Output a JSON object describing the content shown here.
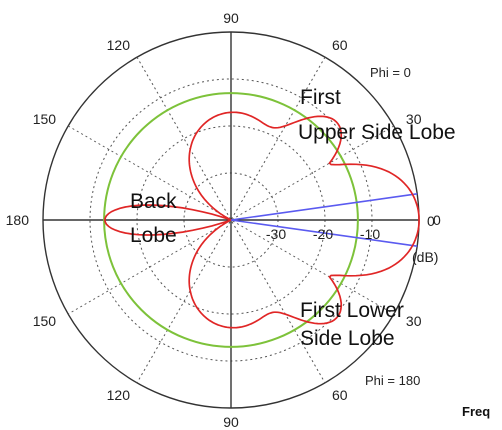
{
  "chart_data": {
    "type": "polar-line",
    "title": "",
    "radial_unit": "(dB)",
    "radial_range_db": [
      -40,
      0
    ],
    "radial_ticks": [
      {
        "label": "-30",
        "value": -30
      },
      {
        "label": "-20",
        "value": -20
      },
      {
        "label": "-10",
        "value": -10
      },
      {
        "label": "0",
        "value": 0
      }
    ],
    "angle_tick_labels": [
      {
        "label": "90",
        "angle_deg": 90
      },
      {
        "label": "60",
        "angle_deg": 60
      },
      {
        "label": "30",
        "angle_deg": 30
      },
      {
        "label": "0",
        "angle_deg": 0
      },
      {
        "label": "30",
        "angle_deg": -30
      },
      {
        "label": "60",
        "angle_deg": -60
      },
      {
        "label": "90",
        "angle_deg": -90
      },
      {
        "label": "120",
        "angle_deg": -120
      },
      {
        "label": "150",
        "angle_deg": -150
      },
      {
        "label": "180",
        "angle_deg": 180
      },
      {
        "label": "150",
        "angle_deg": 150
      },
      {
        "label": "120",
        "angle_deg": 120
      }
    ],
    "plane_labels": {
      "upper": "Phi = 0",
      "lower": "Phi = 180"
    },
    "annotations": {
      "upper_lobe": [
        "First",
        "Upper Side Lobe"
      ],
      "lower_lobe": [
        "First Lower",
        "Side Lobe"
      ],
      "back_lobe": [
        "Back",
        "Lobe"
      ]
    },
    "reference_circle_db": -13,
    "beamwidth_lines_deg": [
      8,
      -8
    ],
    "pattern": {
      "main_lobe_peak_db": 0,
      "main_lobe_half_width_deg": 20,
      "side_lobe_peak_db": -18,
      "side_lobe_angle_deg": 40,
      "back_lobe_peak_db": -28
    },
    "colors": {
      "pattern": "#e02626",
      "reference_circle": "#7dc23a",
      "beamwidth": "#5a5af0",
      "grid": "#555555"
    },
    "grid": true
  },
  "footer_text": "Freq"
}
